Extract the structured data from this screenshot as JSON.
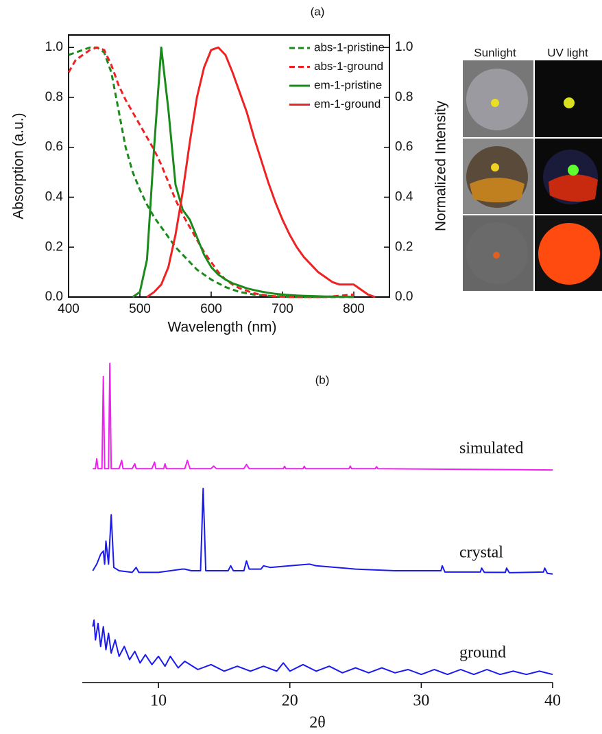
{
  "chart_data": [
    {
      "type": "line",
      "title": "(a)",
      "xlabel": "Wavelength (nm)",
      "ylabel": "Absorption (a.u.)",
      "y2label": "Normalized Intensity",
      "xlim": [
        400,
        850
      ],
      "xticks": [
        400,
        500,
        600,
        700,
        800
      ],
      "ylim": [
        0,
        1.05
      ],
      "yticks": [
        {
          "value": 0,
          "label": "0.0"
        },
        0.2,
        0.4,
        0.6,
        0.8,
        {
          "value": 1,
          "label": "1.0"
        }
      ],
      "y2lim": [
        0,
        1.05
      ],
      "y2ticks": [
        {
          "value": 0,
          "label": "0.0"
        },
        0.2,
        0.4,
        0.6,
        0.8,
        {
          "value": 1,
          "label": "1.0"
        }
      ],
      "annotations": [
        "Sunlight",
        "UV light"
      ],
      "x": [
        400,
        410,
        420,
        430,
        440,
        450,
        460,
        470,
        480,
        490,
        500,
        510,
        520,
        530,
        540,
        550,
        560,
        570,
        580,
        590,
        600,
        610,
        620,
        630,
        640,
        650,
        660,
        670,
        680,
        690,
        700,
        710,
        720,
        730,
        740,
        750,
        760,
        770,
        780,
        790,
        800,
        810,
        820,
        830,
        840
      ],
      "series": [
        {
          "name": "abs-1-pristine",
          "color": "#1a8a1a",
          "linestyle": "dashed",
          "values": [
            0.97,
            0.98,
            0.99,
            1.0,
            1.0,
            0.98,
            0.9,
            0.75,
            0.6,
            0.5,
            0.43,
            0.37,
            0.32,
            0.28,
            0.24,
            0.2,
            0.17,
            0.14,
            0.11,
            0.09,
            0.07,
            0.055,
            0.04,
            0.03,
            0.02,
            0.015,
            0.01,
            0.007,
            0.005,
            0.003,
            0.002,
            0,
            0,
            0,
            0,
            0,
            0,
            0,
            0,
            0,
            0,
            null,
            null,
            null,
            null
          ]
        },
        {
          "name": "abs-1-ground",
          "color": "#ee2222",
          "linestyle": "dashed",
          "values": [
            0.9,
            0.95,
            0.97,
            0.99,
            1.0,
            0.99,
            0.93,
            0.85,
            0.79,
            0.74,
            0.69,
            0.64,
            0.59,
            0.53,
            0.46,
            0.39,
            0.33,
            0.28,
            0.23,
            0.18,
            0.14,
            0.1,
            0.07,
            0.05,
            0.035,
            0.025,
            0.015,
            0.01,
            0.005,
            0.003,
            0.001,
            0,
            0,
            0,
            0,
            0,
            0,
            0.003,
            0.005,
            0.008,
            0.01,
            null,
            null,
            null,
            null
          ]
        },
        {
          "name": "em-1-pristine",
          "color": "#1a8a1a",
          "linestyle": "solid",
          "axis": "y2",
          "values": [
            null,
            null,
            null,
            null,
            null,
            null,
            null,
            null,
            null,
            0.0,
            0.02,
            0.15,
            0.6,
            1.0,
            0.75,
            0.45,
            0.35,
            0.31,
            0.24,
            0.17,
            0.12,
            0.09,
            0.07,
            0.055,
            0.045,
            0.035,
            0.028,
            0.022,
            0.017,
            0.013,
            0.01,
            0.008,
            0.006,
            0.005,
            0.004,
            0.003,
            0.002,
            0.002,
            0.001,
            0.001,
            0.001,
            null,
            null,
            null,
            null
          ]
        },
        {
          "name": "em-1-ground",
          "color": "#ee2222",
          "linestyle": "solid",
          "axis": "y2",
          "values": [
            null,
            null,
            null,
            null,
            null,
            null,
            null,
            null,
            null,
            null,
            null,
            0.0,
            0.02,
            0.05,
            0.12,
            0.25,
            0.42,
            0.62,
            0.8,
            0.92,
            0.99,
            1.0,
            0.97,
            0.9,
            0.82,
            0.74,
            0.64,
            0.55,
            0.46,
            0.38,
            0.31,
            0.25,
            0.2,
            0.16,
            0.13,
            0.1,
            0.08,
            0.06,
            0.05,
            0.05,
            0.05,
            0.03,
            0.01,
            0.0,
            null
          ]
        }
      ]
    },
    {
      "type": "line",
      "title": "(b)",
      "xlabel": "2θ",
      "xlim": [
        4.2,
        40
      ],
      "xticks": [
        10,
        20,
        30,
        40
      ],
      "ylim": [
        0,
        100
      ],
      "series": [
        {
          "name": "simulated",
          "color": "#ee22ee",
          "x": [
            5.0,
            5.2,
            5.3,
            5.4,
            5.7,
            5.8,
            5.9,
            6.2,
            6.3,
            6.4,
            7.0,
            7.2,
            7.3,
            8.0,
            8.2,
            8.3,
            9.5,
            9.7,
            9.8,
            10.4,
            10.5,
            10.6,
            12.0,
            12.2,
            12.4,
            14.0,
            14.2,
            14.4,
            16.5,
            16.7,
            16.9,
            19.5,
            19.6,
            19.7,
            21.0,
            21.1,
            21.2,
            24.5,
            24.6,
            24.7,
            26.5,
            26.6,
            26.7,
            40
          ],
          "values": [
            66,
            66,
            69,
            66,
            66,
            94,
            66,
            66,
            98,
            66,
            66,
            68.5,
            66,
            66,
            67.5,
            66,
            66,
            68,
            66,
            66,
            67.5,
            66,
            66,
            68.5,
            66,
            66,
            66.8,
            66,
            66,
            67.3,
            66,
            66,
            66.7,
            66,
            66,
            66.7,
            66,
            66,
            66.8,
            66,
            66,
            66.6,
            66,
            65.6
          ]
        },
        {
          "name": "crystal",
          "color": "#1a1aee",
          "x": [
            5.0,
            5.3,
            5.6,
            5.8,
            5.9,
            6.0,
            6.2,
            6.4,
            6.6,
            7.0,
            8.0,
            8.3,
            8.5,
            10,
            11.8,
            12,
            12.5,
            13.2,
            13.4,
            13.6,
            15.3,
            15.5,
            15.7,
            16.5,
            16.7,
            16.9,
            17.8,
            18,
            18.5,
            20,
            21.5,
            22,
            25,
            28,
            31.5,
            31.6,
            31.8,
            34.5,
            34.6,
            34.8,
            36.4,
            36.5,
            36.7,
            39.3,
            39.4,
            39.6,
            40
          ],
          "values": [
            35,
            37,
            40,
            41,
            37,
            44,
            37,
            52,
            36,
            35,
            34.5,
            36,
            34.5,
            34.5,
            35.5,
            35.5,
            35,
            35,
            60,
            35,
            35,
            36.5,
            35,
            35,
            38,
            35.5,
            35.5,
            36.5,
            36,
            36.5,
            37,
            36.5,
            35.5,
            35,
            35,
            36.5,
            34.6,
            34.6,
            35.8,
            34.5,
            34.5,
            35.8,
            34.4,
            34.6,
            35.8,
            34.2,
            34
          ]
        },
        {
          "name": "ground",
          "color": "#1a1aee",
          "x": [
            5.0,
            5.1,
            5.2,
            5.4,
            5.6,
            5.8,
            6.0,
            6.2,
            6.4,
            6.7,
            7.0,
            7.4,
            7.8,
            8.2,
            8.6,
            9.0,
            9.5,
            10,
            10.5,
            10.9,
            11.5,
            12,
            13,
            14,
            15,
            16,
            17,
            18,
            19,
            19.5,
            20,
            21,
            22,
            23,
            24,
            25,
            26,
            27,
            28,
            29,
            30,
            31,
            32,
            33,
            34,
            35,
            36,
            37,
            38,
            39,
            40
          ],
          "values": [
            18,
            20,
            14,
            19,
            12,
            18,
            11,
            16,
            10,
            14,
            9,
            12,
            8,
            10.5,
            7,
            9.5,
            6.5,
            9,
            6,
            9,
            5.5,
            7.5,
            5,
            6.5,
            4.5,
            6,
            4.5,
            6,
            4.5,
            7,
            4.5,
            6.5,
            4.5,
            6,
            4,
            5.5,
            4,
            5.5,
            4,
            5,
            3.5,
            5,
            3.5,
            5,
            3.5,
            5,
            3.5,
            4.5,
            3.5,
            4.5,
            3.5
          ]
        }
      ]
    }
  ]
}
